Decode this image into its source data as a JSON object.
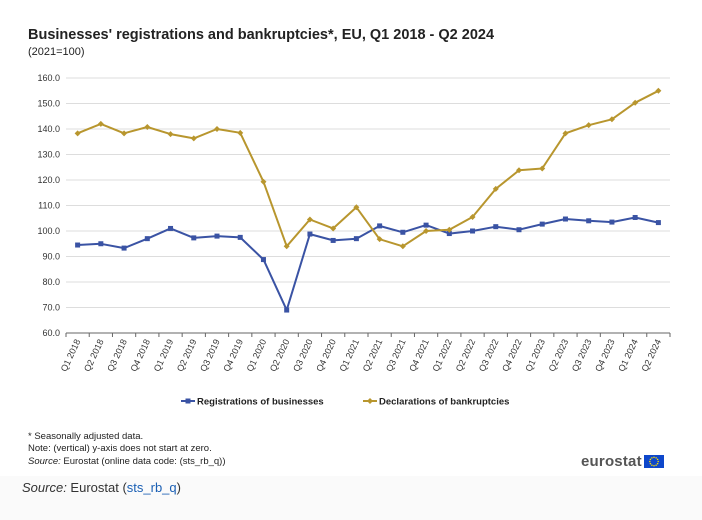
{
  "title": "Businesses' registrations and bankruptcies*, EU, Q1 2018 - Q2 2024",
  "subtitle": "(2021=100)",
  "notes": {
    "seasonal": "* Seasonally adjusted data.",
    "axis": "Note: (vertical) y-axis does not start at zero.",
    "source_label": "Source:",
    "source_text": "Eurostat (online data code: (sts_rb_q))"
  },
  "logo": {
    "text": "eurostat",
    "flag_icon": "eu-flag-icon"
  },
  "footer": {
    "source_label": "Source:",
    "source_prefix": " Eurostat (",
    "source_link": "sts_rb_q",
    "source_suffix": ")"
  },
  "colors": {
    "registrations": "#3a53a4",
    "bankruptcies": "#b8962e",
    "grid": "#dddddd"
  },
  "chart_data": {
    "type": "line",
    "categories": [
      "Q1 2018",
      "Q2 2018",
      "Q3 2018",
      "Q4 2018",
      "Q1 2019",
      "Q2 2019",
      "Q3 2019",
      "Q4 2019",
      "Q1 2020",
      "Q2 2020",
      "Q3 2020",
      "Q4 2020",
      "Q1 2021",
      "Q2 2021",
      "Q3 2021",
      "Q4 2021",
      "Q1 2022",
      "Q2 2022",
      "Q3 2022",
      "Q4 2022",
      "Q1 2023",
      "Q2 2023",
      "Q3 2023",
      "Q4 2023",
      "Q1 2024",
      "Q2 2024"
    ],
    "y_ticks": [
      "160.0",
      "150.0",
      "140.0",
      "130.0",
      "120.0",
      "110.0",
      "100.0",
      "90.0",
      "80.0",
      "70.0",
      "60.0"
    ],
    "ylim": [
      60,
      160
    ],
    "grid": true,
    "legend_position": "bottom",
    "series": [
      {
        "name": "Registrations of businesses",
        "marker": "square",
        "values": [
          94.5,
          95.0,
          93.3,
          97.0,
          101.0,
          97.3,
          98.0,
          97.5,
          88.8,
          69.0,
          98.8,
          96.3,
          97.0,
          102.0,
          99.5,
          102.3,
          99.0,
          100.0,
          101.7,
          100.5,
          102.7,
          104.7,
          104.0,
          103.5,
          105.3,
          103.3
        ]
      },
      {
        "name": "Declarations of bankruptcies",
        "marker": "diamond",
        "values": [
          138.3,
          142.0,
          138.3,
          140.8,
          138.0,
          136.3,
          140.0,
          138.5,
          119.3,
          94.0,
          104.5,
          101.0,
          109.3,
          96.8,
          94.0,
          100.0,
          100.5,
          105.5,
          116.5,
          123.8,
          124.5,
          138.3,
          141.5,
          143.8,
          150.3,
          155.0
        ]
      }
    ]
  }
}
